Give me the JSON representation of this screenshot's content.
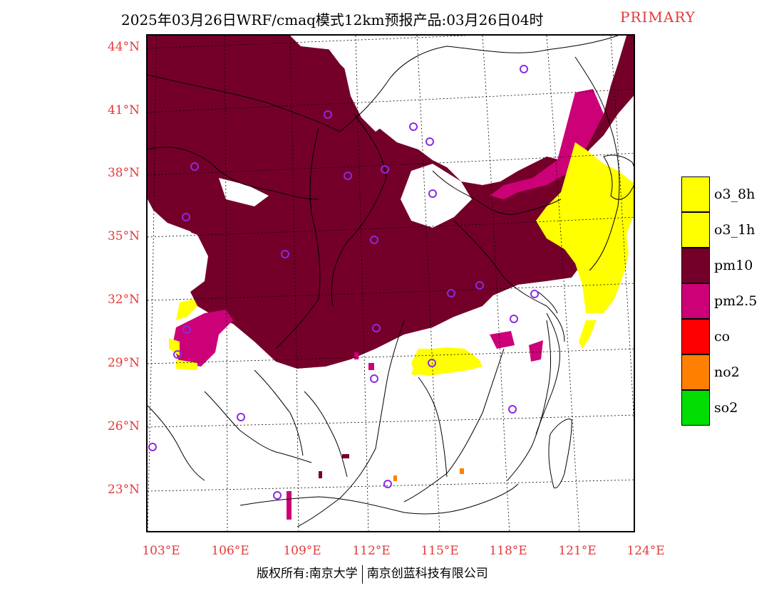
{
  "header": {
    "title": "2025年03月26日WRF/cmaq模式12km预报产品:03月26日04时",
    "primary_label": "PRIMARY"
  },
  "map": {
    "lat_labels": [
      "44°N",
      "41°N",
      "38°N",
      "35°N",
      "32°N",
      "29°N",
      "26°N",
      "23°N"
    ],
    "lon_labels": [
      "103°E",
      "106°E",
      "109°E",
      "112°E",
      "115°E",
      "118°E",
      "121°E",
      "124°E"
    ],
    "colors": {
      "pm10": "#74002a",
      "pm25": "#cc0077",
      "o3": "#ffff00",
      "no2": "#ff8000",
      "station": "#8a2be2",
      "boundary": "#000000"
    }
  },
  "legend": {
    "items": [
      {
        "label": "o3_8h",
        "color": "#ffff00"
      },
      {
        "label": "o3_1h",
        "color": "#ffff00"
      },
      {
        "label": "pm10",
        "color": "#74002a"
      },
      {
        "label": "pm2.5",
        "color": "#cc0077"
      },
      {
        "label": "co",
        "color": "#ff0000"
      },
      {
        "label": "no2",
        "color": "#ff8000"
      },
      {
        "label": "so2",
        "color": "#00dd00"
      }
    ]
  },
  "footer": {
    "left": "版权所有:南京大学",
    "right": "南京创蓝科技有限公司"
  }
}
